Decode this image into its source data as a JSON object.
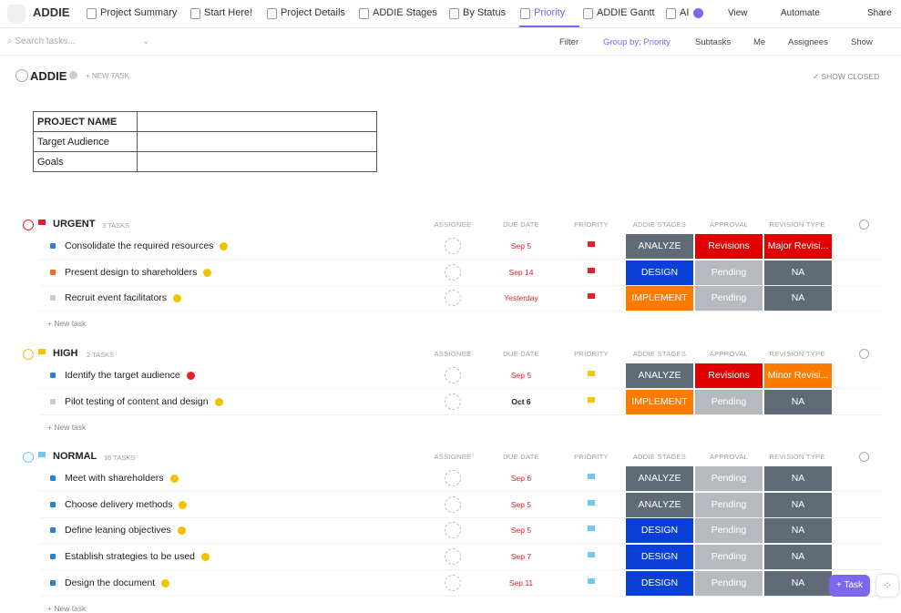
{
  "tabs": [
    "ADDIE",
    "Project Summary",
    "Start Here!",
    "Project Details",
    "ADDIE Stages",
    "By Status",
    "Priority",
    "ADDIE Gantt",
    "AI"
  ],
  "active_tab": "Priority",
  "toolbar": [
    "View",
    "Automate",
    "Share"
  ],
  "search_placeholder": "Search tasks...",
  "filters": [
    "Filter",
    "Group by: Priority",
    "Subtasks",
    "Me",
    "Assignees",
    "Show"
  ],
  "list": {
    "title": "ADDIE",
    "new_task": "+ NEW TASK",
    "show_closed": "SHOW CLOSED"
  },
  "info_table": [
    "PROJECT NAME",
    "Target Audience",
    "Goals"
  ],
  "columns": [
    "ASSIGNEE",
    "DUE DATE",
    "PRIORITY",
    "ADDIE STAGES",
    "APPROVAL",
    "REVISION TYPE"
  ],
  "new_task_row": "+ New task",
  "fab": "Task",
  "colors": {
    "ANALYZE": "#5f6b76",
    "DESIGN": "#0a3fd8",
    "IMPLEMENT": "#ff7b00",
    "Revisions": "#e00000",
    "Pending": "#b6babf",
    "NA": "#5f6b76",
    "Major Revisi...": "#e00000",
    "Minor Revisi...": "#ff7b00"
  },
  "groups": [
    {
      "name": "URGENT",
      "count": "3 TASKS",
      "flag_color": "#e5202a",
      "tasks": [
        {
          "name": "Consolidate the required resources",
          "status_color": "#2e7fd6",
          "badge_color": "#f2c200",
          "due": "Sep 5",
          "due_color": "#e0202a",
          "stage": "ANALYZE",
          "approval": "Revisions",
          "revision": "Major Revisi..."
        },
        {
          "name": "Present design to shareholders",
          "status_color": "#f26b1d",
          "badge_color": "#f2c200",
          "due": "Sep 14",
          "due_color": "#e0202a",
          "stage": "DESIGN",
          "approval": "Pending",
          "revision": "NA"
        },
        {
          "name": "Recruit event facilitators",
          "status_color": "#c8cbd0",
          "badge_color": "#f2c200",
          "due": "Yesterday",
          "due_color": "#e0202a",
          "stage": "IMPLEMENT",
          "approval": "Pending",
          "revision": "NA"
        }
      ]
    },
    {
      "name": "HIGH",
      "count": "2 TASKS",
      "flag_color": "#f4c400",
      "tasks": [
        {
          "name": "Identify the target audience",
          "status_color": "#2e7fd6",
          "badge_color": "#e5202a",
          "due": "Sep 5",
          "due_color": "#e0202a",
          "stage": "ANALYZE",
          "approval": "Revisions",
          "revision": "Minor Revisi..."
        },
        {
          "name": "Pilot testing of content and design",
          "status_color": "#c8cbd0",
          "badge_color": "#f2c200",
          "due": "Oct 6",
          "due_color": "#222222",
          "stage": "IMPLEMENT",
          "approval": "Pending",
          "revision": "NA"
        }
      ]
    },
    {
      "name": "NORMAL",
      "count": "16 TASKS",
      "flag_color": "#6fc8f0",
      "tasks": [
        {
          "name": "Meet with shareholders",
          "status_color": "#2e7fd6",
          "badge_color": "#f2c200",
          "due": "Sep 6",
          "due_color": "#e0202a",
          "stage": "ANALYZE",
          "approval": "Pending",
          "revision": "NA"
        },
        {
          "name": "Choose delivery methods",
          "status_color": "#2e7fd6",
          "badge_color": "#f2c200",
          "due": "Sep 5",
          "due_color": "#e0202a",
          "stage": "ANALYZE",
          "approval": "Pending",
          "revision": "NA"
        },
        {
          "name": "Define leaning objectives",
          "status_color": "#2e7fd6",
          "badge_color": "#f2c200",
          "due": "Sep 5",
          "due_color": "#e0202a",
          "stage": "DESIGN",
          "approval": "Pending",
          "revision": "NA"
        },
        {
          "name": "Establish strategies to be used",
          "status_color": "#2e7fd6",
          "badge_color": "#f2c200",
          "due": "Sep 7",
          "due_color": "#e0202a",
          "stage": "DESIGN",
          "approval": "Pending",
          "revision": "NA"
        },
        {
          "name": "Design the document",
          "status_color": "#2e7fd6",
          "badge_color": "#f2c200",
          "due": "Sep 11",
          "due_color": "#e0202a",
          "stage": "DESIGN",
          "approval": "Pending",
          "revision": "NA"
        }
      ]
    }
  ]
}
